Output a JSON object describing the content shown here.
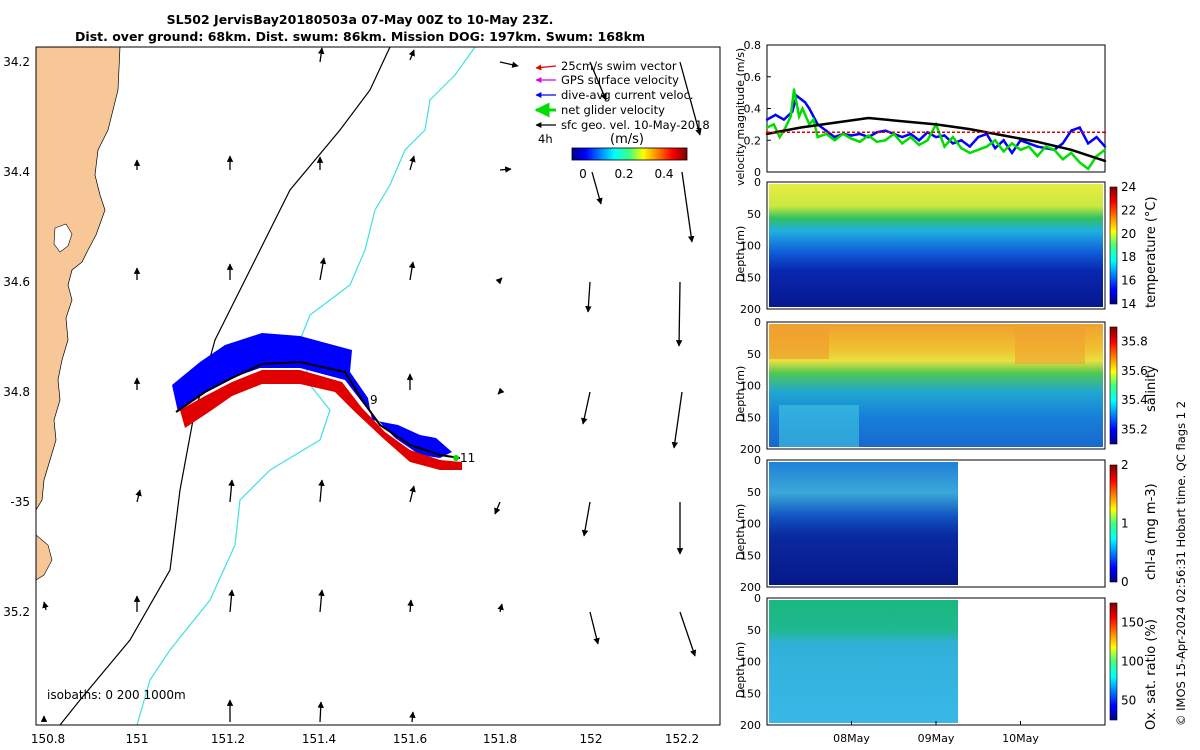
{
  "header": {
    "title_line1": "SL502 JervisBay20180503a 07-May 00Z to 10-May 23Z.",
    "title_line2": "Dist. over ground: 68km. Dist. swum: 86km. Mission DOG: 197km. Swum: 168km"
  },
  "colors": {
    "land": "#F8C797",
    "isobath_200": "#000000",
    "isobath_1000": "#40E0E0",
    "swim_vector": "#E00000",
    "gps_velocity": "#E000E0",
    "dive_avg": "#0000FF",
    "net_glider": "#00DD00",
    "sfc_geo": "#000000"
  },
  "map": {
    "lon_ticks": [
      "150.8",
      "151",
      "151.2",
      "151.4",
      "151.6",
      "151.8",
      "152",
      "152.2"
    ],
    "lat_ticks": [
      "34.2",
      "34.4",
      "34.6",
      "34.8",
      "-35",
      "35.2"
    ],
    "legend": {
      "items": [
        "25cm/s swim vector",
        "GPS surface velocity",
        "dive-avg current veloc.",
        "net glider velocity",
        "sfc geo. vel. 10-May-2018"
      ],
      "interval_label": "4h",
      "units_label": "(m/s)",
      "colorbar_ticks": [
        "0",
        "0.2",
        "0.4"
      ]
    },
    "isobath_label": "isobaths: 0   200  1000m",
    "track_labels": [
      "9",
      "11"
    ]
  },
  "chart_data": [
    {
      "type": "line",
      "title": "",
      "ylabel": "velocity magnitude (m/s)",
      "ylim": [
        0,
        0.8
      ],
      "yticks": [
        "0",
        "0.2",
        "0.4",
        "0.6",
        "0.8"
      ],
      "x_range_days": [
        0,
        4
      ],
      "series": [
        {
          "name": "dive-avg current veloc.",
          "color": "#0000FF",
          "x": [
            0,
            0.1,
            0.2,
            0.3,
            0.35,
            0.45,
            0.5,
            0.6,
            0.7,
            0.8,
            0.9,
            1.0,
            1.1,
            1.2,
            1.3,
            1.4,
            1.5,
            1.6,
            1.7,
            1.8,
            1.9,
            2.0,
            2.1,
            2.2,
            2.3,
            2.4,
            2.5,
            2.6,
            2.7,
            2.8,
            2.9,
            3.0,
            3.1,
            3.2,
            3.3,
            3.4,
            3.5,
            3.6,
            3.7,
            3.8,
            3.9,
            4.0
          ],
          "values": [
            0.33,
            0.36,
            0.33,
            0.38,
            0.48,
            0.44,
            0.4,
            0.3,
            0.26,
            0.22,
            0.24,
            0.23,
            0.24,
            0.22,
            0.25,
            0.26,
            0.24,
            0.22,
            0.24,
            0.2,
            0.25,
            0.22,
            0.23,
            0.18,
            0.2,
            0.16,
            0.22,
            0.24,
            0.15,
            0.2,
            0.12,
            0.2,
            0.18,
            0.16,
            0.15,
            0.14,
            0.18,
            0.26,
            0.28,
            0.18,
            0.22,
            0.16
          ]
        },
        {
          "name": "net glider velocity",
          "color": "#00DD00",
          "x": [
            0,
            0.08,
            0.15,
            0.2,
            0.28,
            0.32,
            0.38,
            0.42,
            0.5,
            0.55,
            0.6,
            0.7,
            0.8,
            0.9,
            1.0,
            1.1,
            1.2,
            1.3,
            1.4,
            1.5,
            1.6,
            1.7,
            1.8,
            1.9,
            2.0,
            2.1,
            2.2,
            2.3,
            2.4,
            2.5,
            2.6,
            2.7,
            2.8,
            2.9,
            3.0,
            3.1,
            3.2,
            3.3,
            3.4,
            3.5,
            3.6,
            3.7,
            3.8,
            3.9,
            4.0
          ],
          "values": [
            0.28,
            0.3,
            0.22,
            0.26,
            0.35,
            0.52,
            0.35,
            0.4,
            0.3,
            0.33,
            0.22,
            0.24,
            0.2,
            0.24,
            0.21,
            0.19,
            0.23,
            0.19,
            0.2,
            0.24,
            0.18,
            0.22,
            0.17,
            0.2,
            0.3,
            0.16,
            0.22,
            0.15,
            0.12,
            0.14,
            0.16,
            0.2,
            0.13,
            0.18,
            0.14,
            0.16,
            0.1,
            0.16,
            0.14,
            0.08,
            0.12,
            0.06,
            0.02,
            0.1,
            0.14
          ]
        },
        {
          "name": "sfc geo. vel. 10-May-2018",
          "color": "#000000",
          "x": [
            0,
            0.4,
            0.8,
            1.2,
            1.6,
            2.0,
            2.4,
            2.8,
            3.2,
            3.6,
            4.0
          ],
          "values": [
            0.24,
            0.28,
            0.31,
            0.34,
            0.32,
            0.3,
            0.27,
            0.23,
            0.19,
            0.14,
            0.07
          ]
        },
        {
          "name": "swim speed",
          "color": "#E00000",
          "x": [
            0,
            4
          ],
          "values": [
            0.25,
            0.25
          ]
        }
      ]
    },
    {
      "type": "heatmap",
      "ylabel": "Depth (m)",
      "cbar_label": "temperature (°C)",
      "ylim": [
        200,
        0
      ],
      "yticks": [
        "0",
        "50",
        "100",
        "150",
        "200"
      ],
      "clim": [
        14,
        24
      ],
      "cbar_ticks": [
        "24",
        "22",
        "20",
        "18",
        "16",
        "14"
      ],
      "x_range_days": [
        0,
        4
      ]
    },
    {
      "type": "heatmap",
      "ylabel": "Depth (m)",
      "cbar_label": "salinity",
      "ylim": [
        200,
        0
      ],
      "yticks": [
        "0",
        "50",
        "100",
        "150",
        "200"
      ],
      "clim": [
        35.1,
        35.9
      ],
      "cbar_ticks": [
        "35.8",
        "35.6",
        "35.4",
        "35.2"
      ],
      "x_range_days": [
        0,
        4
      ]
    },
    {
      "type": "heatmap",
      "ylabel": "Depth (m)",
      "cbar_label": "chl-a (mg m-3)",
      "ylim": [
        200,
        0
      ],
      "yticks": [
        "0",
        "50",
        "100",
        "150",
        "200"
      ],
      "clim": [
        0,
        2
      ],
      "cbar_ticks": [
        "2",
        "1",
        "0"
      ],
      "x_range_days": [
        0,
        2.35
      ]
    },
    {
      "type": "heatmap",
      "ylabel": "Depth (m)",
      "cbar_label": "Ox. sat. ratio (%)",
      "ylim": [
        200,
        0
      ],
      "yticks": [
        "0",
        "50",
        "100",
        "150",
        "200"
      ],
      "clim": [
        25,
        175
      ],
      "cbar_ticks": [
        "150",
        "100",
        "50"
      ],
      "x_range_days": [
        0,
        2.35
      ],
      "xticks": [
        "08May",
        "09May",
        "10May"
      ]
    }
  ],
  "footer": {
    "side_note": "© IMOS 15-Apr-2024 02:56:31 Hobart time. QC flags 1  2"
  }
}
